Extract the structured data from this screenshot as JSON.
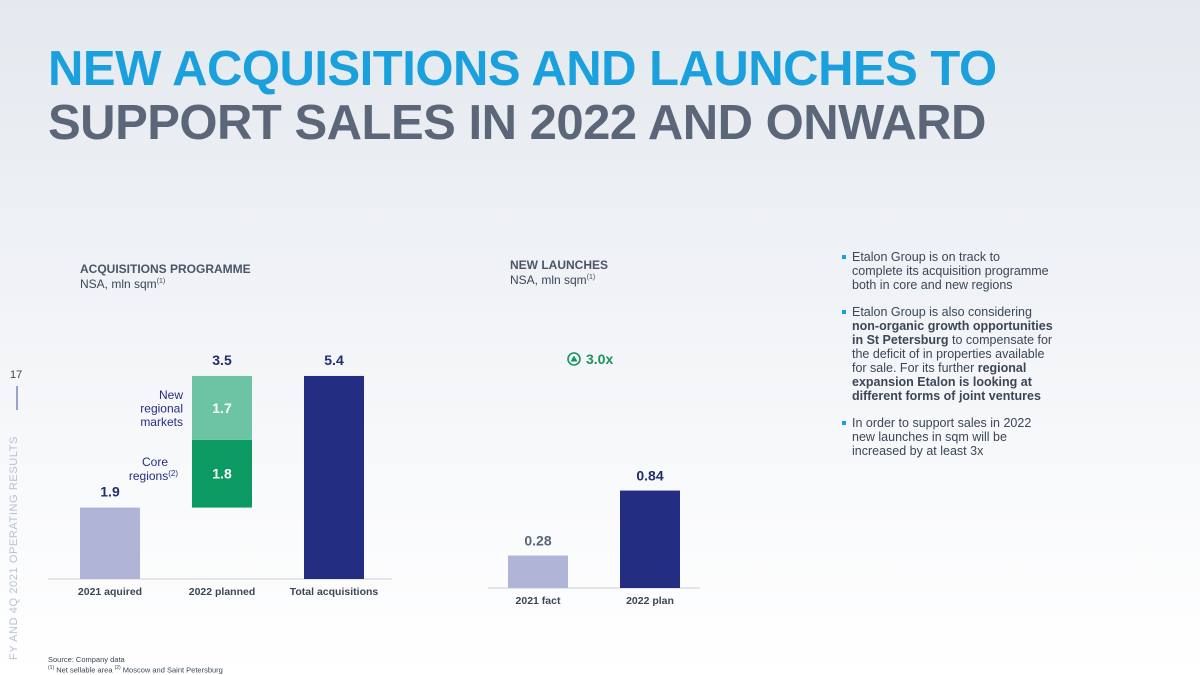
{
  "title": {
    "line1": "NEW ACQUISITIONS AND LAUNCHES TO",
    "line2": "SUPPORT SALES IN 2022 AND ONWARD"
  },
  "page_number": "17",
  "side_label": "FY AND 4Q 2021 OPERATING RESULTS",
  "colors": {
    "accent_blue": "#1aa0dc",
    "navy": "#232d82",
    "lavender": "#b0b5d8",
    "green": "#0a9a62",
    "light_green": "#6cc4a4",
    "launch_green": "#19945a",
    "title_grey": "#5b6778"
  },
  "chart_data": [
    {
      "type": "bar",
      "title": "ACQUISITIONS PROGRAMME",
      "subtitle": "NSA, mln sqm",
      "subtitle_note": "(1)",
      "categories": [
        "2021 aquired",
        "2022 planned",
        "Total acquisitions"
      ],
      "values": [
        1.9,
        3.5,
        5.4
      ],
      "value_labels": [
        "1.9",
        "3.5",
        "5.4"
      ],
      "stacked": {
        "category": "2022 planned",
        "segments": [
          {
            "name": "Core regions",
            "note": "(2)",
            "value": 1.8,
            "label": "1.8",
            "color": "#0a9a62"
          },
          {
            "name": "New regional markets",
            "value": 1.7,
            "label": "1.7",
            "color": "#6cc4a4"
          }
        ]
      },
      "bar_colors": [
        "#b0b5d8",
        null,
        "#232d82"
      ]
    },
    {
      "type": "bar",
      "title": "NEW LAUNCHES",
      "subtitle": "NSA, mln sqm",
      "subtitle_note": "(1)",
      "categories": [
        "2021 fact",
        "2022 plan"
      ],
      "values": [
        0.28,
        0.84
      ],
      "value_labels": [
        "0.28",
        "0.84"
      ],
      "annotation": "3.0x",
      "annotation_icon": "arrow-up-circle-icon",
      "bar_colors": [
        "#b0b5d8",
        "#232d82"
      ]
    }
  ],
  "bullets": [
    [
      {
        "text": "Etalon Group is on track to complete its acquisition programme both in core and new regions",
        "bold": false
      }
    ],
    [
      {
        "text": "Etalon Group is also considering ",
        "bold": false
      },
      {
        "text": "non-organic growth opportunities in St Petersburg",
        "bold": true
      },
      {
        "text": " to compensate for the deficit of in properties available for sale. For its further ",
        "bold": false
      },
      {
        "text": "regional expansion Etalon is looking at different forms of joint ventures",
        "bold": true
      }
    ],
    [
      {
        "text": "In order to support sales in 2022 new launches in sqm will be increased by at least 3x",
        "bold": false
      }
    ]
  ],
  "footnotes": {
    "source": "Source: Company data",
    "note1_mark": "(1)",
    "note1": " Net sellable area ",
    "note2_mark": "(2)",
    "note2": " Moscow and Saint Petersburg"
  }
}
